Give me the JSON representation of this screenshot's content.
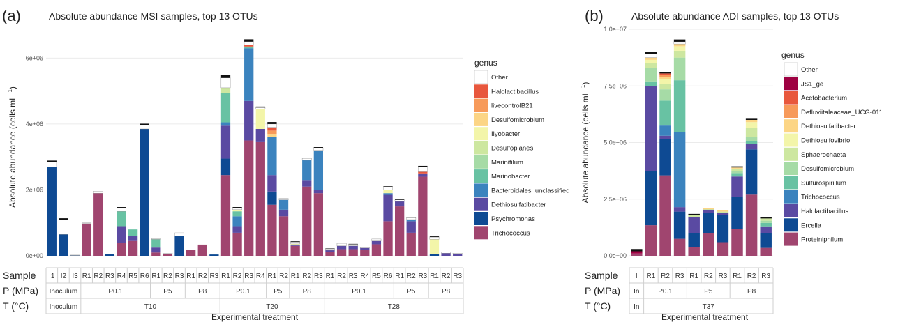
{
  "chart_data": [
    {
      "type": "bar",
      "panel": "(a)",
      "title": "Absolute abundance MSI samples, top 13 OTUs",
      "ylabel": "Absolute abundance  (cells mL",
      "ylabel_sup": "−1",
      "ylabel_end": ")",
      "xlabel": "Experimental treatment",
      "ylim": [
        0,
        6600000
      ],
      "yticks": [
        0,
        2000000,
        4000000,
        6000000
      ],
      "ytick_labels": [
        "0e+00",
        "2e+06",
        "4e+06",
        "6e+06"
      ],
      "legend_title": "genus",
      "legend": [
        "Other",
        "Halolactibacillus",
        "livecontrolB21",
        "Desulfomicrobium",
        "Ilyobacter",
        "Desulfoplanes",
        "Marinifilum",
        "Marinobacter",
        "Bacteroidales_unclassified",
        "Dethiosulfatibacter",
        "Psychromonas",
        "Trichococcus"
      ],
      "colors": {
        "Other": "#ffffff",
        "Halolactibacillus": "#e8573d",
        "livecontrolB21": "#f79a5a",
        "Desulfomicrobium": "#fcd585",
        "Ilyobacter": "#f3f5a9",
        "Desulfoplanes": "#cde7a0",
        "Marinifilum": "#a6dba6",
        "Marinobacter": "#68c2a3",
        "Bacteroidales_unclassified": "#3b83be",
        "Dethiosulfatibacter": "#5a4aa2",
        "Psychromonas": "#0e4a93",
        "Trichococcus": "#a0456f"
      },
      "samples": [
        {
          "label": "I1",
          "stack": {
            "Psychromonas": 2700000,
            "Other": 150000,
            "black": 40000
          }
        },
        {
          "label": "I2",
          "stack": {
            "Psychromonas": 650000,
            "Other": 450000,
            "black": 40000
          }
        },
        {
          "label": "I3",
          "stack": {
            "Psychromonas": 10000,
            "Other": 10000
          }
        },
        {
          "label": "R1",
          "stack": {
            "Trichococcus": 980000,
            "Other": 20000
          }
        },
        {
          "label": "R2",
          "stack": {
            "Trichococcus": 1900000,
            "Other": 60000
          }
        },
        {
          "label": "R3",
          "stack": {
            "Psychromonas": 60000
          }
        },
        {
          "label": "R4",
          "stack": {
            "Trichococcus": 400000,
            "Dethiosulfatibacter": 500000,
            "Marinobacter": 450000,
            "Other": 100000,
            "black": 30000
          }
        },
        {
          "label": "R5",
          "stack": {
            "Trichococcus": 450000,
            "Dethiosulfatibacter": 150000,
            "Marinobacter": 200000
          }
        },
        {
          "label": "R6",
          "stack": {
            "Psychromonas": 3850000,
            "Other": 120000,
            "black": 40000
          }
        },
        {
          "label": "R1",
          "stack": {
            "Trichococcus": 100000,
            "Dethiosulfatibacter": 150000,
            "Marinobacter": 250000,
            "Other": 20000
          }
        },
        {
          "label": "R2",
          "stack": {
            "Trichococcus": 60000,
            "Other": 10000
          }
        },
        {
          "label": "R3",
          "stack": {
            "Psychromonas": 600000,
            "Other": 80000,
            "black": 20000
          }
        },
        {
          "label": "R1",
          "stack": {
            "Trichococcus": 180000
          }
        },
        {
          "label": "R2",
          "stack": {
            "Trichococcus": 340000
          }
        },
        {
          "label": "R3",
          "stack": {
            "Psychromonas": 40000
          }
        },
        {
          "label": "R1",
          "stack": {
            "Trichococcus": 2450000,
            "Psychromonas": 500000,
            "Dethiosulfatibacter": 1000000,
            "Bacteroidales_unclassified": 100000,
            "Marinobacter": 900000,
            "Desulfoplanes": 150000,
            "Other": 300000,
            "black": 80000
          }
        },
        {
          "label": "R2",
          "stack": {
            "Trichococcus": 700000,
            "Dethiosulfatibacter": 200000,
            "Bacteroidales_unclassified": 300000,
            "Marinobacter": 150000,
            "Ilyobacter": 50000,
            "Other": 50000,
            "black": 30000
          }
        },
        {
          "label": "R3",
          "stack": {
            "Trichococcus": 3500000,
            "Dethiosulfatibacter": 1200000,
            "Bacteroidales_unclassified": 1600000,
            "Marinobacter": 50000,
            "Halolactibacillus": 50000,
            "Other": 100000,
            "black": 70000
          }
        },
        {
          "label": "R4",
          "stack": {
            "Trichococcus": 3450000,
            "Dethiosulfatibacter": 400000,
            "Ilyobacter": 600000,
            "Other": 50000,
            "black": 30000
          }
        },
        {
          "label": "R1",
          "stack": {
            "Trichococcus": 1550000,
            "Psychromonas": 400000,
            "Dethiosulfatibacter": 500000,
            "Bacteroidales_unclassified": 1150000,
            "Desulfomicrobium": 100000,
            "livecontrolB21": 100000,
            "Halolactibacillus": 100000,
            "Other": 100000,
            "black": 60000
          }
        },
        {
          "label": "R2",
          "stack": {
            "Trichococcus": 1200000,
            "Dethiosulfatibacter": 200000,
            "Bacteroidales_unclassified": 300000,
            "Other": 40000
          }
        },
        {
          "label": "R1",
          "stack": {
            "Trichococcus": 300000,
            "Dethiosulfatibacter": 30000,
            "Ilyobacter": 30000,
            "Other": 60000,
            "black": 20000
          }
        },
        {
          "label": "R2",
          "stack": {
            "Trichococcus": 2100000,
            "Dethiosulfatibacter": 200000,
            "Bacteroidales_unclassified": 600000,
            "Other": 60000,
            "black": 20000
          }
        },
        {
          "label": "R3",
          "stack": {
            "Trichococcus": 1900000,
            "Dethiosulfatibacter": 100000,
            "Bacteroidales_unclassified": 1200000,
            "Other": 80000,
            "black": 20000
          }
        },
        {
          "label": "R1",
          "stack": {
            "Trichococcus": 120000,
            "Dethiosulfatibacter": 50000,
            "Other": 40000,
            "black": 10000
          }
        },
        {
          "label": "R2",
          "stack": {
            "Trichococcus": 200000,
            "Dethiosulfatibacter": 100000,
            "Other": 80000,
            "black": 20000
          }
        },
        {
          "label": "R3",
          "stack": {
            "Trichococcus": 200000,
            "Dethiosulfatibacter": 100000,
            "Other": 50000,
            "black": 10000
          }
        },
        {
          "label": "R4",
          "stack": {
            "Trichococcus": 180000,
            "Dethiosulfatibacter": 60000,
            "Other": 30000
          }
        },
        {
          "label": "R5",
          "stack": {
            "Trichococcus": 350000,
            "Dethiosulfatibacter": 100000,
            "Other": 60000
          }
        },
        {
          "label": "R6",
          "stack": {
            "Trichococcus": 1050000,
            "Dethiosulfatibacter": 800000,
            "Bacteroidales_unclassified": 50000,
            "Ilyobacter": 100000,
            "Other": 80000,
            "black": 30000
          }
        },
        {
          "label": "R1",
          "stack": {
            "Trichococcus": 1500000,
            "Dethiosulfatibacter": 150000,
            "Other": 50000,
            "black": 20000
          }
        },
        {
          "label": "R2",
          "stack": {
            "Trichococcus": 700000,
            "Dethiosulfatibacter": 350000,
            "Bacteroidales_unclassified": 50000,
            "Other": 60000,
            "black": 20000
          }
        },
        {
          "label": "R3",
          "stack": {
            "Trichococcus": 2400000,
            "Dethiosulfatibacter": 100000,
            "Halolactibacillus": 50000,
            "Other": 150000,
            "black": 30000
          }
        },
        {
          "label": "R1",
          "stack": {
            "Psychromonas": 50000,
            "Ilyobacter": 450000,
            "Other": 70000,
            "black": 20000
          }
        },
        {
          "label": "R2",
          "stack": {
            "Dethiosulfatibacter": 80000,
            "Other": 30000
          }
        },
        {
          "label": "R3",
          "stack": {
            "Dethiosulfatibacter": 60000,
            "Other": 20000
          }
        }
      ],
      "table": {
        "row_labels": [
          "Sample",
          "P (MPa)",
          "T (°C)"
        ],
        "pressure_groups": [
          {
            "label": "Inoculum",
            "n": 3
          },
          {
            "label": "P0.1",
            "n": 6
          },
          {
            "label": "P5",
            "n": 3
          },
          {
            "label": "P8",
            "n": 3
          },
          {
            "label": "P0.1",
            "n": 4
          },
          {
            "label": "P5",
            "n": 2
          },
          {
            "label": "P8",
            "n": 3
          },
          {
            "label": "P0.1",
            "n": 6
          },
          {
            "label": "P5",
            "n": 3
          },
          {
            "label": "P8",
            "n": 3
          }
        ],
        "temperature_groups": [
          {
            "label": "Inoculum",
            "n": 3
          },
          {
            "label": "T10",
            "n": 12
          },
          {
            "label": "T20",
            "n": 9
          },
          {
            "label": "T28",
            "n": 12
          }
        ]
      }
    },
    {
      "type": "bar",
      "panel": "(b)",
      "title": "Absolute abundance ADI samples, top 13 OTUs",
      "ylabel": "Absolute abundance  (cells mL",
      "ylabel_sup": "−1",
      "ylabel_end": ")",
      "xlabel": "Experimental treatment",
      "ylim": [
        0,
        10000000
      ],
      "yticks": [
        0,
        2500000,
        5000000,
        7500000,
        10000000
      ],
      "ytick_labels": [
        "0.0e+00",
        "2.5e+06",
        "5.0e+06",
        "7.5e+06",
        "1.0e+07"
      ],
      "legend_title": "genus",
      "legend": [
        "Other",
        "JS1_ge",
        "Acetobacterium",
        "Defluviitaleaceae_UCG-011",
        "Dethiosulfatibacter",
        "Dethiosulfovibrio",
        "Sphaerochaeta",
        "Desulfomicrobium",
        "Sulfurospirillum",
        "Trichococcus",
        "Halolactibacillus",
        "Ercella",
        "Proteiniphilum"
      ],
      "colors": {
        "Other": "#ffffff",
        "JS1_ge": "#9e0142",
        "Acetobacterium": "#e8573d",
        "Defluviitaleaceae_UCG-011": "#f79a5a",
        "Dethiosulfatibacter": "#fcd585",
        "Dethiosulfovibrio": "#f3f5a9",
        "Sphaerochaeta": "#cde7a0",
        "Desulfomicrobium": "#a6dba6",
        "Sulfurospirillum": "#68c2a3",
        "Trichococcus": "#3b83be",
        "Halolactibacillus": "#5a4aa2",
        "Ercella": "#0e4a93",
        "Proteiniphilum": "#a0456f"
      },
      "samples": [
        {
          "label": "I",
          "stack": {
            "Proteiniphilum": 100000,
            "JS1_ge": 100000,
            "black": 100000
          }
        },
        {
          "label": "R1",
          "stack": {
            "Proteiniphilum": 1350000,
            "Ercella": 2400000,
            "Halolactibacillus": 3750000,
            "Sulfurospirillum": 200000,
            "Desulfomicrobium": 600000,
            "Sphaerochaeta": 200000,
            "Dethiosulfovibrio": 150000,
            "Dethiosulfatibacter": 100000,
            "Other": 150000,
            "black": 100000
          }
        },
        {
          "label": "R2",
          "stack": {
            "Proteiniphilum": 3550000,
            "Ercella": 1600000,
            "Halolactibacillus": 150000,
            "Trichococcus": 450000,
            "Sulfurospirillum": 1100000,
            "Desulfomicrobium": 500000,
            "Sphaerochaeta": 250000,
            "Dethiosulfovibrio": 200000,
            "Dethiosulfatibacter": 100000,
            "Defluviitaleaceae_UCG-011": 100000,
            "Acetobacterium": 50000,
            "black": 50000
          }
        },
        {
          "label": "R3",
          "stack": {
            "Proteiniphilum": 750000,
            "Ercella": 1200000,
            "Halolactibacillus": 200000,
            "Trichococcus": 3300000,
            "Sulfurospirillum": 2300000,
            "Desulfomicrobium": 1000000,
            "Sphaerochaeta": 300000,
            "Dethiosulfovibrio": 200000,
            "Dethiosulfatibacter": 100000,
            "Other": 100000,
            "black": 100000
          }
        },
        {
          "label": "R1",
          "stack": {
            "Proteiniphilum": 400000,
            "Ercella": 600000,
            "Halolactibacillus": 700000,
            "Sphaerochaeta": 100000,
            "black": 50000
          }
        },
        {
          "label": "R2",
          "stack": {
            "Proteiniphilum": 1000000,
            "Ercella": 900000,
            "Halolactibacillus": 100000,
            "Desulfomicrobium": 50000,
            "Dethiosulfatibacter": 50000
          }
        },
        {
          "label": "R3",
          "stack": {
            "Proteiniphilum": 600000,
            "Ercella": 1200000,
            "Halolactibacillus": 100000,
            "Sphaerochaeta": 50000,
            "Dethiosulfatibacter": 50000
          }
        },
        {
          "label": "R1",
          "stack": {
            "Proteiniphilum": 1200000,
            "Ercella": 1400000,
            "Halolactibacillus": 900000,
            "Sulfurospirillum": 150000,
            "Desulfomicrobium": 100000,
            "Sphaerochaeta": 100000,
            "Dethiosulfatibacter": 50000,
            "black": 50000
          }
        },
        {
          "label": "R2",
          "stack": {
            "Proteiniphilum": 2700000,
            "Ercella": 2000000,
            "Halolactibacillus": 250000,
            "Sulfurospirillum": 100000,
            "Desulfomicrobium": 200000,
            "Sphaerochaeta": 400000,
            "Dethiosulfovibrio": 250000,
            "Dethiosulfatibacter": 100000,
            "black": 50000
          }
        },
        {
          "label": "R3",
          "stack": {
            "Proteiniphilum": 350000,
            "Ercella": 650000,
            "Halolactibacillus": 300000,
            "Sulfurospirillum": 150000,
            "Desulfomicrobium": 100000,
            "Sphaerochaeta": 100000,
            "black": 50000
          }
        }
      ],
      "table": {
        "row_labels": [
          "Sample",
          "P (MPa)",
          "T (°C)"
        ],
        "pressure_groups": [
          {
            "label": "In",
            "n": 1
          },
          {
            "label": "P0.1",
            "n": 3
          },
          {
            "label": "P5",
            "n": 3
          },
          {
            "label": "P8",
            "n": 3
          }
        ],
        "temperature_groups": [
          {
            "label": "In",
            "n": 1
          },
          {
            "label": "T37",
            "n": 9
          }
        ]
      }
    }
  ]
}
